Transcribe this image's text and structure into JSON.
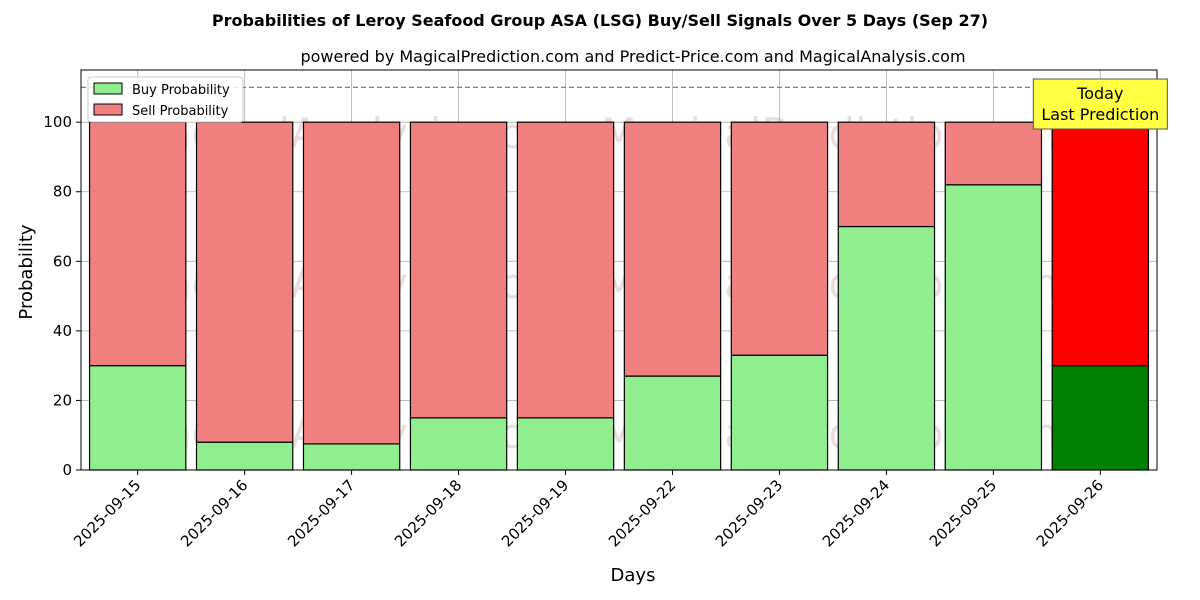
{
  "chart_data": {
    "type": "bar",
    "stacked": true,
    "title": "Probabilities of Leroy Seafood Group ASA (LSG) Buy/Sell Signals Over 5 Days (Sep 27)",
    "subtitle": "powered by MagicalPrediction.com and Predict-Price.com and MagicalAnalysis.com",
    "xlabel": "Days",
    "ylabel": "Probability",
    "ylim": [
      0,
      115
    ],
    "yticks": [
      0,
      20,
      40,
      60,
      80,
      100
    ],
    "reference_line": 110,
    "categories": [
      "2025-09-15",
      "2025-09-16",
      "2025-09-17",
      "2025-09-18",
      "2025-09-19",
      "2025-09-22",
      "2025-09-23",
      "2025-09-24",
      "2025-09-25",
      "2025-09-26"
    ],
    "series": [
      {
        "name": "Buy Probability",
        "color": "#90ee90",
        "highlight_color": "#008000",
        "values": [
          30,
          8,
          7.5,
          15,
          15,
          27,
          33,
          70,
          82,
          30
        ]
      },
      {
        "name": "Sell Probability",
        "color": "#f08080",
        "highlight_color": "#ff0000",
        "values": [
          70,
          92,
          92.5,
          85,
          85,
          73,
          67,
          30,
          18,
          70
        ]
      }
    ],
    "highlight_index": 9,
    "annotation": {
      "line1": "Today",
      "line2": "Last Prediction",
      "color": "#ffff44"
    },
    "watermarks": [
      "MagicalAnalysis.com",
      "MagicalPrediction.com"
    ],
    "grid": true,
    "legend_position": "top-left"
  }
}
